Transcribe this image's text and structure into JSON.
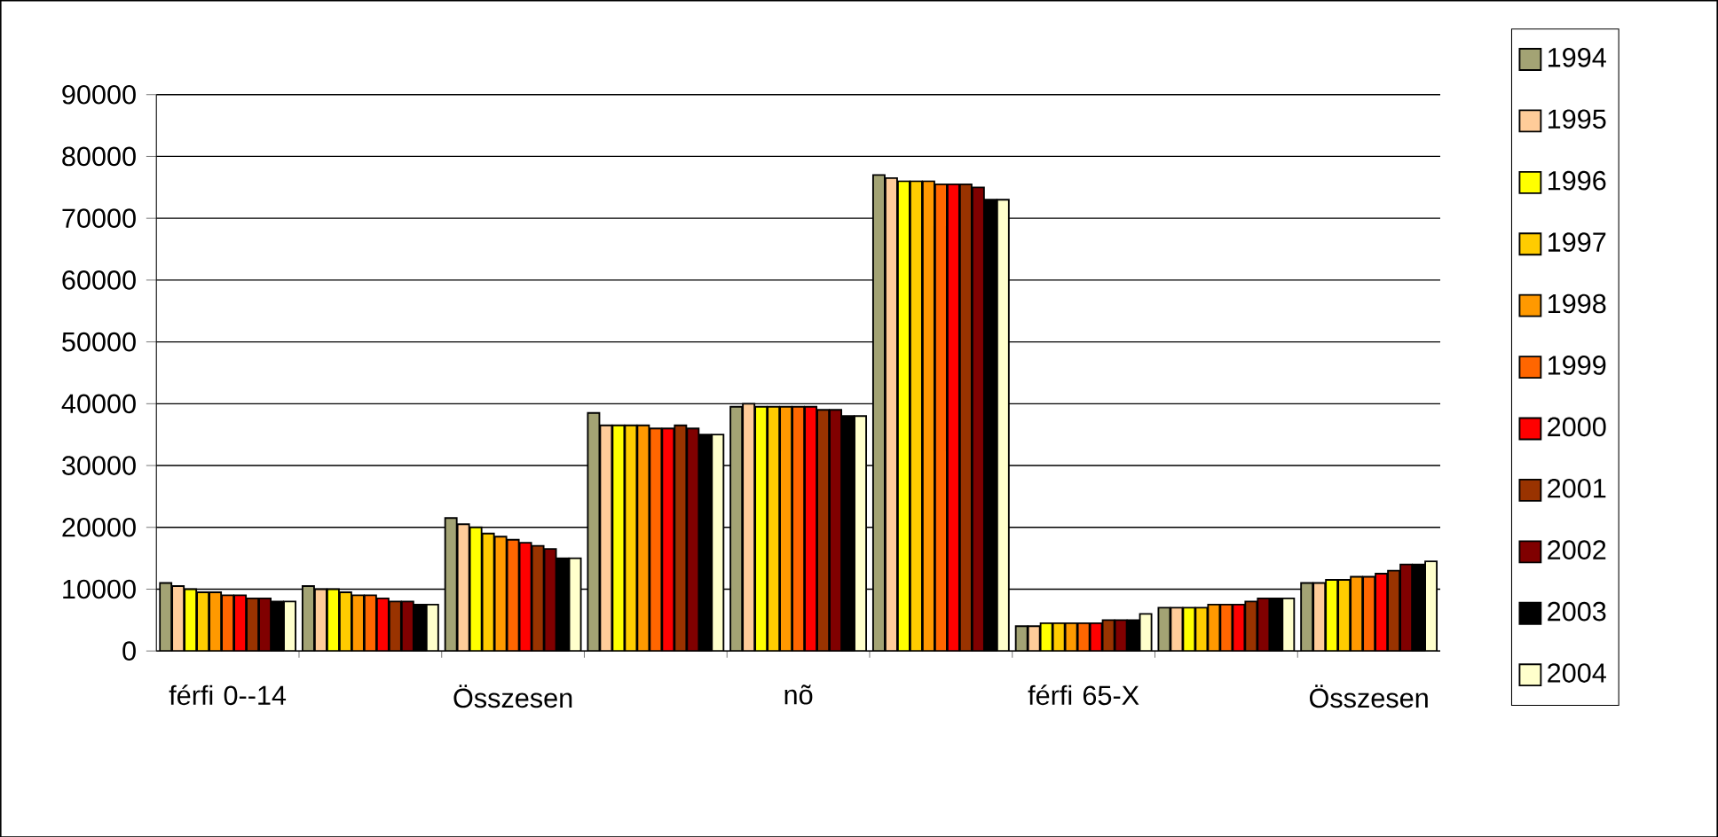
{
  "chart_data": {
    "type": "bar",
    "categories": [
      "férfi 0--14",
      null,
      "Összesen",
      null,
      "nõ",
      null,
      "férfi 65-X",
      null,
      "Összesen"
    ],
    "series": [
      {
        "name": "1994",
        "color": "#a3a374",
        "values": [
          11000,
          10500,
          21500,
          38500,
          39500,
          77000,
          4000,
          7000,
          11000
        ]
      },
      {
        "name": "1995",
        "color": "#ffcc99",
        "values": [
          10500,
          10000,
          20500,
          36500,
          40000,
          76500,
          4000,
          7000,
          11000
        ]
      },
      {
        "name": "1996",
        "color": "#ffff00",
        "values": [
          10000,
          10000,
          20000,
          36500,
          39500,
          76000,
          4500,
          7000,
          11500
        ]
      },
      {
        "name": "1997",
        "color": "#ffcc00",
        "values": [
          9500,
          9500,
          19000,
          36500,
          39500,
          76000,
          4500,
          7000,
          11500
        ]
      },
      {
        "name": "1998",
        "color": "#ff9900",
        "values": [
          9500,
          9000,
          18500,
          36500,
          39500,
          76000,
          4500,
          7500,
          12000
        ]
      },
      {
        "name": "1999",
        "color": "#ff6600",
        "values": [
          9000,
          9000,
          18000,
          36000,
          39500,
          75500,
          4500,
          7500,
          12000
        ]
      },
      {
        "name": "2000",
        "color": "#ff0000",
        "values": [
          9000,
          8500,
          17500,
          36000,
          39500,
          75500,
          4500,
          7500,
          12500
        ]
      },
      {
        "name": "2001",
        "color": "#993300",
        "values": [
          8500,
          8000,
          17000,
          36500,
          39000,
          75500,
          5000,
          8000,
          13000
        ]
      },
      {
        "name": "2002",
        "color": "#800000",
        "values": [
          8500,
          8000,
          16500,
          36000,
          39000,
          75000,
          5000,
          8500,
          14000
        ]
      },
      {
        "name": "2003",
        "color": "#000000",
        "values": [
          8000,
          7500,
          15000,
          35000,
          38000,
          73000,
          5000,
          8500,
          14000
        ]
      },
      {
        "name": "2004",
        "color": "#ffffcc",
        "values": [
          8000,
          7500,
          15000,
          35000,
          38000,
          73000,
          6000,
          8500,
          14500
        ]
      }
    ],
    "ylim": [
      0,
      90000
    ],
    "yticks": [
      0,
      10000,
      20000,
      30000,
      40000,
      50000,
      60000,
      70000,
      80000,
      90000
    ],
    "grid": "y",
    "legend": "right"
  }
}
